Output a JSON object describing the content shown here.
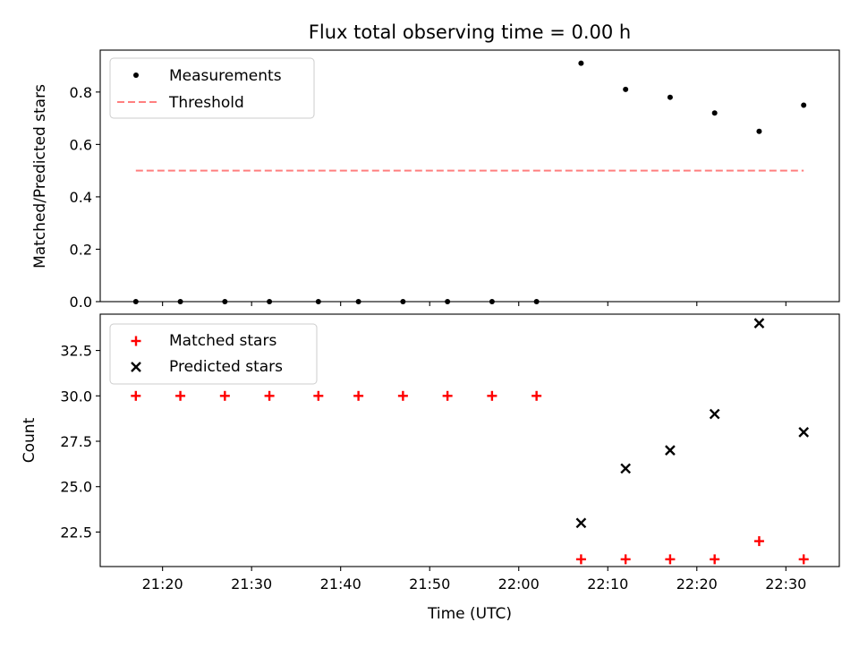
{
  "figure": {
    "title": "Flux total observing time = 0.00 h",
    "xlabel": "Time (UTC)",
    "x_ticks": [
      "21:20",
      "21:30",
      "21:40",
      "21:50",
      "22:00",
      "22:10",
      "22:20",
      "22:30"
    ]
  },
  "colors": {
    "measurement": "#000000",
    "threshold": "#ff7f7f",
    "matched": "#ff0000",
    "predicted": "#000000",
    "axes": "#000000"
  },
  "chart_data": [
    {
      "type": "scatter",
      "ylabel": "Matched/Predicted stars",
      "x_unit": "time UTC",
      "x": [
        "21:17",
        "21:22",
        "21:27",
        "21:32",
        "21:37:30",
        "21:42",
        "21:47",
        "21:52",
        "21:57",
        "22:02",
        "22:07",
        "22:12",
        "22:17",
        "22:22",
        "22:27",
        "22:32"
      ],
      "series": [
        {
          "name": "Measurements",
          "values": [
            0,
            0,
            0,
            0,
            0,
            0,
            0,
            0,
            0,
            0,
            0.91,
            0.81,
            0.78,
            0.72,
            0.65,
            0.75
          ]
        },
        {
          "name": "Threshold",
          "style": "dashed line",
          "x": [
            "21:17",
            "22:32"
          ],
          "values": [
            0.5,
            0.5
          ]
        }
      ],
      "ylim": [
        0,
        0.96
      ],
      "y_ticks": [
        "0.0",
        "0.2",
        "0.4",
        "0.6",
        "0.8"
      ],
      "legend": "top-left",
      "grid": false
    },
    {
      "type": "scatter",
      "ylabel": "Count",
      "xlabel": "Time (UTC)",
      "series": [
        {
          "name": "Matched stars",
          "marker": "+",
          "x": [
            "21:17",
            "21:22",
            "21:27",
            "21:32",
            "21:37:30",
            "21:42",
            "21:47",
            "21:52",
            "21:57",
            "22:02",
            "22:07",
            "22:12",
            "22:17",
            "22:22",
            "22:27",
            "22:32"
          ],
          "values": [
            30,
            30,
            30,
            30,
            30,
            30,
            30,
            30,
            30,
            30,
            21,
            21,
            21,
            21,
            22,
            21
          ]
        },
        {
          "name": "Predicted stars",
          "marker": "x",
          "x": [
            "22:07",
            "22:12",
            "22:17",
            "22:22",
            "22:27",
            "22:32"
          ],
          "values": [
            23,
            26,
            27,
            29,
            34,
            28
          ]
        }
      ],
      "ylim": [
        20.6,
        34.5
      ],
      "y_ticks": [
        "22.5",
        "25.0",
        "27.5",
        "30.0",
        "32.5"
      ],
      "legend": "top-left",
      "grid": false
    }
  ]
}
